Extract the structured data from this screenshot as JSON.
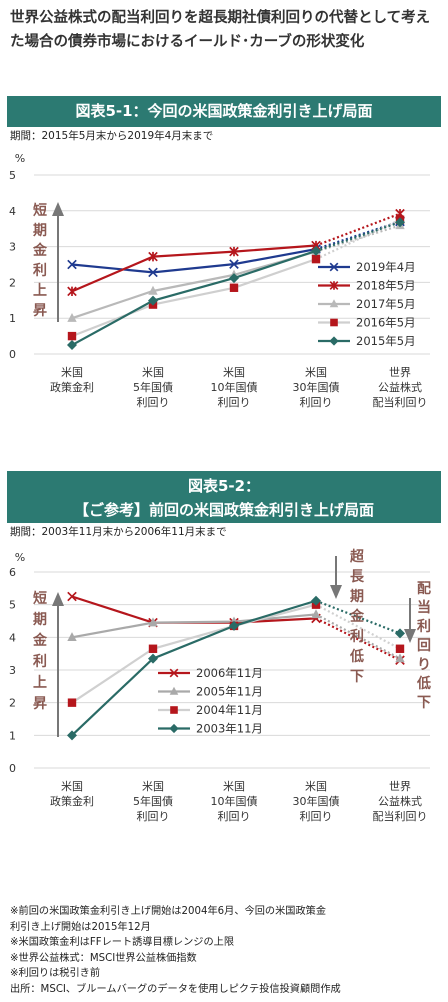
{
  "title": "世界公益株式の配当利回りを超長期社債利回りの代替として考えた場合の債券市場におけるイールド･カーブの形状変化",
  "colors": {
    "header_bg": "#2c7a72",
    "arrow": "#777777",
    "annotation_text": "#8a5a52"
  },
  "chart_data": [
    {
      "type": "line",
      "title": "図表5-1：今回の米国政策金利引き上げ局面",
      "subtitle": "期間：2015年5月末から2019年4月末まで",
      "ylabel": "%",
      "ylim": [
        0,
        5
      ],
      "yticks": [
        "0",
        "1",
        "2",
        "3",
        "4",
        "5"
      ],
      "categories": [
        [
          "米国",
          "政策金利"
        ],
        [
          "米国",
          "5年国債",
          "利回り"
        ],
        [
          "米国",
          "10年国債",
          "利回り"
        ],
        [
          "米国",
          "30年国債",
          "利回り"
        ],
        [
          "世界",
          "公益株式",
          "配当利回り"
        ]
      ],
      "grid": true,
      "legend_position": "right",
      "dotted_last_segment": true,
      "series": [
        {
          "name": "2019年4月",
          "color": "#1f3a8f",
          "marker": "x",
          "values": [
            2.5,
            2.28,
            2.51,
            2.93,
            3.7
          ]
        },
        {
          "name": "2018年5月",
          "color": "#b5161c",
          "marker": "star",
          "values": [
            1.75,
            2.72,
            2.86,
            3.03,
            3.92
          ]
        },
        {
          "name": "2017年5月",
          "color": "#b9b9b9",
          "marker": "triangle",
          "values": [
            1.0,
            1.76,
            2.21,
            2.86,
            3.59
          ]
        },
        {
          "name": "2016年5月",
          "color": "#b5161c",
          "line_color": "#cfcfcf",
          "marker": "square",
          "values": [
            0.5,
            1.38,
            1.85,
            2.65,
            3.75
          ]
        },
        {
          "name": "2015年5月",
          "color": "#2a6b66",
          "marker": "diamond",
          "values": [
            0.25,
            1.49,
            2.12,
            2.88,
            3.68
          ]
        }
      ],
      "annotations": [
        {
          "text": "短期金利上昇",
          "arrow": "up"
        }
      ]
    },
    {
      "type": "line",
      "title": "図表5-2：【ご参考】前回の米国政策金利引き上げ局面",
      "title_lines": [
        "図表5-2：",
        "【ご参考】前回の米国政策金利引き上げ局面"
      ],
      "subtitle": "期間：2003年11月末から2006年11月末まで",
      "ylabel": "%",
      "ylim": [
        0,
        6
      ],
      "yticks": [
        "0",
        "1",
        "2",
        "3",
        "4",
        "5",
        "6"
      ],
      "categories": [
        [
          "米国",
          "政策金利"
        ],
        [
          "米国",
          "5年国債",
          "利回り"
        ],
        [
          "米国",
          "10年国債",
          "利回り"
        ],
        [
          "米国",
          "30年国債",
          "利回り"
        ],
        [
          "世界",
          "公益株式",
          "配当利回り"
        ]
      ],
      "grid": true,
      "legend_position": "center",
      "dotted_last_segment": true,
      "series": [
        {
          "name": "2006年11月",
          "color": "#b5161c",
          "marker": "x",
          "values": [
            5.25,
            4.45,
            4.45,
            4.58,
            3.3
          ]
        },
        {
          "name": "2005年11月",
          "color": "#a9a9a9",
          "marker": "triangle",
          "values": [
            4.0,
            4.45,
            4.48,
            4.7,
            3.35
          ]
        },
        {
          "name": "2004年11月",
          "color": "#b5161c",
          "line_color": "#d0d0d0",
          "marker": "square",
          "values": [
            2.0,
            3.65,
            4.35,
            5.0,
            3.65
          ]
        },
        {
          "name": "2003年11月",
          "color": "#2a6b66",
          "marker": "diamond",
          "values": [
            1.0,
            3.35,
            4.35,
            5.12,
            4.12
          ]
        }
      ],
      "annotations": [
        {
          "text": "短期金利上昇",
          "arrow": "up"
        },
        {
          "text": "超長期金利低下",
          "arrow": "down"
        },
        {
          "text": "配当利回り低下",
          "arrow": "down"
        }
      ]
    }
  ],
  "footnotes": [
    "※前回の米国政策金利引き上げ開始は2004年6月、今回の米国政策金",
    "利引き上げ開始は2015年12月",
    "※米国政策金利はFFレート誘導目標レンジの上限",
    "※世界公益株式：MSCI世界公益株価指数",
    "※利回りは税引き前",
    "出所：MSCI、ブルームバーグのデータを使用しピクテ投信投資顧問作成"
  ]
}
